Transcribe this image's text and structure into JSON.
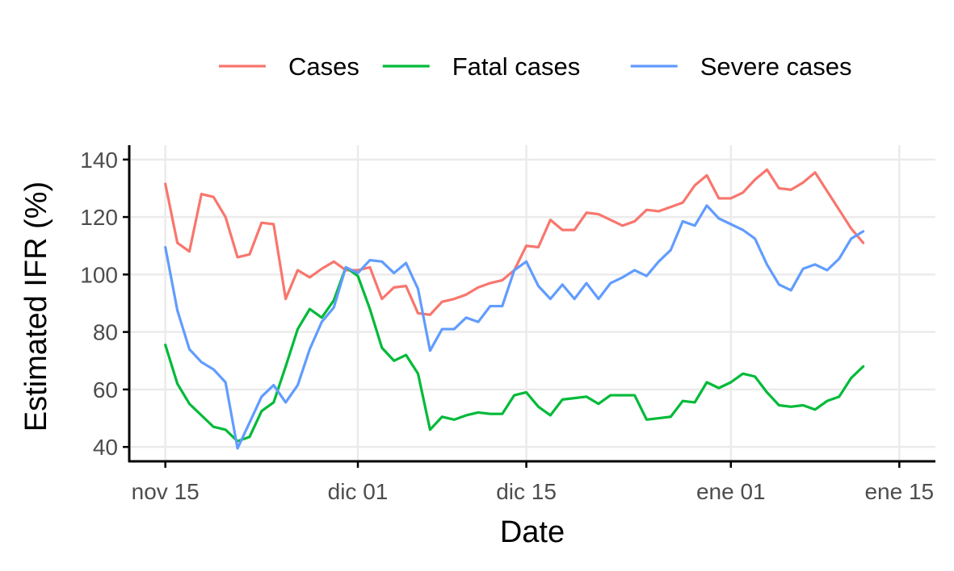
{
  "chart_data": {
    "type": "line",
    "title": "",
    "xlabel": "Date",
    "ylabel": "Estimated IFR (%)",
    "x_axis": {
      "type": "date",
      "range": [
        "2021-11-12",
        "2022-01-18"
      ],
      "ticks": [
        {
          "date": "2021-11-15",
          "label": "nov 15"
        },
        {
          "date": "2021-12-01",
          "label": "dic 01"
        },
        {
          "date": "2021-12-15",
          "label": "dic 15"
        },
        {
          "date": "2022-01-01",
          "label": "ene 01"
        },
        {
          "date": "2022-01-15",
          "label": "ene 15"
        }
      ]
    },
    "y_axis": {
      "range": [
        35,
        145
      ],
      "ticks": [
        40,
        60,
        80,
        100,
        120,
        140
      ]
    },
    "grid": true,
    "legend_position": "top",
    "x_start": "2021-11-15",
    "series": [
      {
        "name": "Cases",
        "color": "#F8766D",
        "values": [
          131.5,
          111,
          108,
          128,
          127,
          120,
          106,
          107,
          118,
          117.5,
          91.5,
          101.5,
          99,
          102,
          104.5,
          101.5,
          101.5,
          102.5,
          91.5,
          95.5,
          96,
          86.5,
          86,
          90.5,
          91.5,
          93,
          95.5,
          97,
          98,
          101.5,
          110,
          109.5,
          119,
          115.5,
          115.5,
          121.5,
          121,
          119,
          117,
          118.5,
          122.5,
          122,
          123.5,
          125,
          131,
          134.5,
          126.5,
          126.5,
          128.5,
          133,
          136.5,
          130,
          129.5,
          132,
          135.5,
          129,
          122.5,
          116,
          111
        ]
      },
      {
        "name": "Fatal cases",
        "color": "#00BA38",
        "values": [
          75.5,
          62,
          55,
          51,
          47,
          46,
          42,
          43.5,
          52.5,
          55.5,
          68,
          81,
          88,
          85,
          91,
          102.5,
          99.5,
          88,
          74.5,
          70,
          72,
          65.5,
          46,
          50.5,
          49.5,
          51,
          52,
          51.5,
          51.5,
          58,
          59,
          54,
          51,
          56.5,
          57,
          57.5,
          55,
          58,
          58,
          58,
          49.5,
          50,
          50.5,
          56,
          55.5,
          62.5,
          60.5,
          62.5,
          65.5,
          64.5,
          59,
          54.5,
          54,
          54.5,
          53,
          56,
          57.5,
          64,
          68
        ]
      },
      {
        "name": "Severe cases",
        "color": "#619CFF",
        "values": [
          109.5,
          87.5,
          74,
          69.5,
          67,
          62.5,
          39.5,
          48.5,
          57.5,
          61.5,
          55.5,
          61.5,
          74,
          83.5,
          88.5,
          102.5,
          100.5,
          105,
          104.5,
          100.5,
          104,
          95,
          73.5,
          81,
          81,
          85,
          83.5,
          89,
          89,
          101.5,
          104.5,
          96,
          91.5,
          96.5,
          91.5,
          97,
          91.5,
          97,
          99,
          101.5,
          99.5,
          104.5,
          108.5,
          118.5,
          117,
          124,
          119.5,
          117.5,
          115.5,
          112.5,
          103.5,
          96.5,
          94.5,
          102,
          103.5,
          101.5,
          105.5,
          112.5,
          115
        ]
      }
    ]
  }
}
